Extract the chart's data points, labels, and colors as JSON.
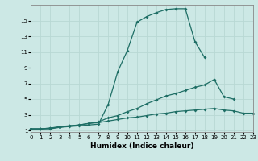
{
  "xlabel": "Humidex (Indice chaleur)",
  "bg_color": "#cce8e5",
  "grid_color_major": "#b8d8d4",
  "grid_color_minor": "#d0e8e4",
  "line_color": "#1e6e65",
  "x_data": [
    0,
    1,
    2,
    3,
    4,
    5,
    6,
    7,
    8,
    9,
    10,
    11,
    12,
    13,
    14,
    15,
    16,
    17,
    18,
    19,
    20,
    21,
    22,
    23
  ],
  "line1_y": [
    1.2,
    1.2,
    1.2,
    1.4,
    1.5,
    1.6,
    1.7,
    1.8,
    4.3,
    8.5,
    11.2,
    14.8,
    15.5,
    16.0,
    16.4,
    16.5,
    16.5,
    12.3,
    10.3,
    null,
    null,
    null,
    null,
    null
  ],
  "line2_y": [
    1.2,
    1.2,
    1.3,
    1.4,
    1.6,
    1.7,
    1.9,
    2.1,
    2.6,
    2.9,
    3.4,
    3.8,
    4.4,
    4.9,
    5.4,
    5.7,
    6.1,
    6.5,
    6.8,
    7.5,
    5.3,
    5.0,
    null,
    null
  ],
  "line3_y": [
    1.2,
    1.2,
    1.3,
    1.5,
    1.6,
    1.7,
    1.9,
    2.0,
    2.2,
    2.4,
    2.6,
    2.7,
    2.9,
    3.1,
    3.2,
    3.4,
    3.5,
    3.6,
    3.7,
    3.8,
    3.6,
    3.5,
    3.2,
    3.2
  ],
  "xlim": [
    0,
    23
  ],
  "ylim": [
    0.8,
    17
  ],
  "yticks": [
    1,
    3,
    5,
    7,
    9,
    11,
    13,
    15
  ],
  "xticks": [
    0,
    1,
    2,
    3,
    4,
    5,
    6,
    7,
    8,
    9,
    10,
    11,
    12,
    13,
    14,
    15,
    16,
    17,
    18,
    19,
    20,
    21,
    22,
    23
  ],
  "markersize": 2.0,
  "linewidth": 0.9,
  "tick_fontsize": 5.0,
  "xlabel_fontsize": 6.5
}
